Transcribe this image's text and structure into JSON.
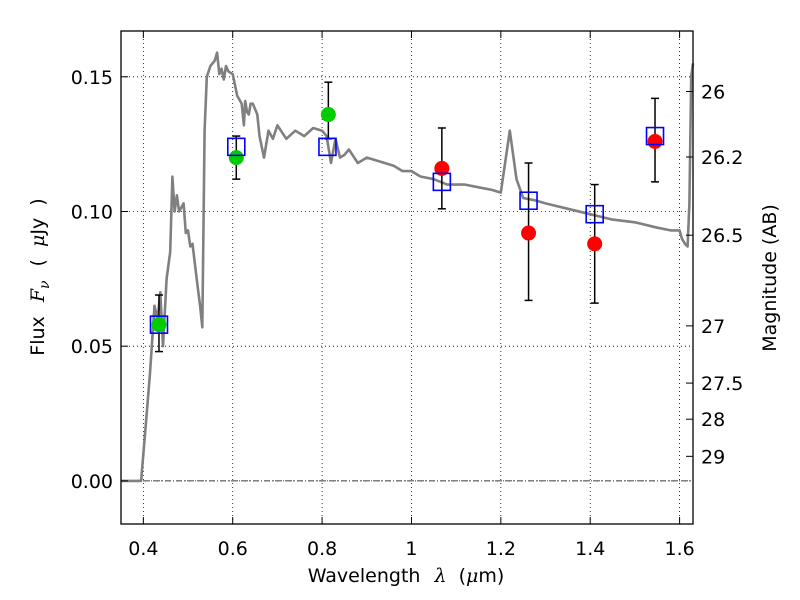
{
  "chart_data": {
    "type": "scatter",
    "title": "",
    "xlabel": {
      "prefix": "Wavelength",
      "symbol": "λ",
      "unit_open": "(",
      "unit_mu": "μ",
      "unit_rest": "m)"
    },
    "ylabel": {
      "prefix": "Flux",
      "symbol": "F",
      "sub": "ν",
      "unit_open": "(",
      "unit_mu": "μ",
      "unit_rest": "Jy",
      "unit_close": ")"
    },
    "y2label": "Magnitude (AB)",
    "xlim": [
      0.35,
      1.63
    ],
    "ylim": [
      -0.016,
      0.167
    ],
    "grid": true,
    "x_ticks": [
      {
        "value": 0.4,
        "label": "0.4"
      },
      {
        "value": 0.6,
        "label": "0.6"
      },
      {
        "value": 0.8,
        "label": "0.8"
      },
      {
        "value": 1.0,
        "label": "1"
      },
      {
        "value": 1.2,
        "label": "1.2"
      },
      {
        "value": 1.4,
        "label": "1.4"
      },
      {
        "value": 1.6,
        "label": "1.6"
      }
    ],
    "y_ticks": [
      {
        "value": 0.0,
        "label": "0.00"
      },
      {
        "value": 0.05,
        "label": "0.05"
      },
      {
        "value": 0.1,
        "label": "0.10"
      },
      {
        "value": 0.15,
        "label": "0.15"
      }
    ],
    "mag_ticks": [
      {
        "mag": 26,
        "label": "26"
      },
      {
        "mag": 26.2,
        "label": "26.2"
      },
      {
        "mag": 26.5,
        "label": "26.5"
      },
      {
        "mag": 27,
        "label": "27"
      },
      {
        "mag": 27.5,
        "label": "27.5"
      },
      {
        "mag": 28,
        "label": "28"
      },
      {
        "mag": 29,
        "label": "29"
      }
    ],
    "model_spectrum": {
      "color": "#808080",
      "x": [
        0.35,
        0.395,
        0.405,
        0.415,
        0.425,
        0.432,
        0.438,
        0.444,
        0.452,
        0.46,
        0.465,
        0.47,
        0.475,
        0.48,
        0.49,
        0.495,
        0.5,
        0.505,
        0.51,
        0.52,
        0.527,
        0.532,
        0.537,
        0.542,
        0.55,
        0.56,
        0.565,
        0.57,
        0.575,
        0.58,
        0.585,
        0.59,
        0.6,
        0.61,
        0.62,
        0.625,
        0.628,
        0.632,
        0.636,
        0.64,
        0.645,
        0.65,
        0.655,
        0.66,
        0.67,
        0.68,
        0.69,
        0.7,
        0.72,
        0.74,
        0.76,
        0.78,
        0.8,
        0.81,
        0.82,
        0.83,
        0.84,
        0.85,
        0.86,
        0.88,
        0.9,
        0.92,
        0.94,
        0.96,
        0.98,
        1.0,
        1.02,
        1.05,
        1.08,
        1.1,
        1.12,
        1.15,
        1.18,
        1.2,
        1.22,
        1.235,
        1.25,
        1.28,
        1.3,
        1.35,
        1.4,
        1.45,
        1.5,
        1.55,
        1.58,
        1.6,
        1.605,
        1.612,
        1.618,
        1.622,
        1.626,
        1.63
      ],
      "y": [
        0.0,
        0.0,
        0.02,
        0.04,
        0.065,
        0.06,
        0.07,
        0.05,
        0.075,
        0.085,
        0.113,
        0.1,
        0.106,
        0.1,
        0.103,
        0.092,
        0.093,
        0.087,
        0.088,
        0.074,
        0.065,
        0.057,
        0.13,
        0.15,
        0.154,
        0.156,
        0.159,
        0.151,
        0.153,
        0.149,
        0.154,
        0.152,
        0.151,
        0.143,
        0.14,
        0.132,
        0.141,
        0.137,
        0.136,
        0.14,
        0.14,
        0.138,
        0.136,
        0.128,
        0.12,
        0.13,
        0.127,
        0.132,
        0.127,
        0.13,
        0.128,
        0.131,
        0.13,
        0.128,
        0.118,
        0.127,
        0.12,
        0.121,
        0.123,
        0.118,
        0.12,
        0.119,
        0.118,
        0.117,
        0.115,
        0.115,
        0.113,
        0.112,
        0.11,
        0.11,
        0.11,
        0.109,
        0.108,
        0.107,
        0.13,
        0.112,
        0.105,
        0.104,
        0.103,
        0.101,
        0.099,
        0.097,
        0.096,
        0.094,
        0.093,
        0.093,
        0.09,
        0.088,
        0.087,
        0.103,
        0.15,
        0.155
      ]
    },
    "model_points": {
      "marker": "open-square",
      "color": "#0000ff",
      "x": [
        0.435,
        0.608,
        0.812,
        1.068,
        1.262,
        1.41,
        1.545
      ],
      "y": [
        0.058,
        0.124,
        0.124,
        0.111,
        0.104,
        0.099,
        0.128
      ]
    },
    "observed_detections": {
      "marker": "filled-circle",
      "color": "#00cc00",
      "x": [
        0.435,
        0.608,
        0.814
      ],
      "y": [
        0.058,
        0.12,
        0.136
      ],
      "yerr_low": [
        0.01,
        0.008,
        0.009
      ],
      "yerr_high": [
        0.011,
        0.008,
        0.012
      ]
    },
    "observed_red": {
      "marker": "filled-circle",
      "color": "#ff0000",
      "x": [
        1.068,
        1.262,
        1.41,
        1.545
      ],
      "y": [
        0.116,
        0.092,
        0.088,
        0.126
      ],
      "yerr_low": [
        0.015,
        0.025,
        0.022,
        0.015
      ],
      "yerr_high": [
        0.015,
        0.026,
        0.022,
        0.016
      ]
    },
    "errorbar_color": "#000000"
  }
}
